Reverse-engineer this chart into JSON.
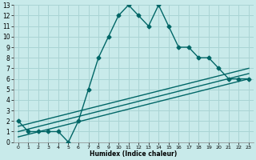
{
  "xlabel": "Humidex (Indice chaleur)",
  "ylabel": "",
  "bg_color": "#c8eaea",
  "grid_color": "#aad4d4",
  "line_color": "#006666",
  "xlim": [
    -0.5,
    23.5
  ],
  "ylim": [
    0,
    13
  ],
  "xticks": [
    0,
    1,
    2,
    3,
    4,
    5,
    6,
    7,
    8,
    9,
    10,
    11,
    12,
    13,
    14,
    15,
    16,
    17,
    18,
    19,
    20,
    21,
    22,
    23
  ],
  "yticks": [
    0,
    1,
    2,
    3,
    4,
    5,
    6,
    7,
    8,
    9,
    10,
    11,
    12,
    13
  ],
  "curve1_x": [
    0,
    1,
    2,
    3,
    4,
    5,
    6,
    7,
    8,
    9,
    10,
    11,
    12,
    13,
    14,
    15,
    16,
    17,
    18,
    19,
    20,
    21,
    22,
    23
  ],
  "curve1_y": [
    2,
    1,
    1,
    1,
    1,
    0,
    2,
    5,
    8,
    10,
    12,
    13,
    12,
    11,
    13,
    11,
    9,
    9,
    8,
    8,
    7,
    6,
    6,
    6
  ],
  "line2_x": [
    0,
    23
  ],
  "line2_y": [
    1.5,
    7.0
  ],
  "line3_x": [
    0,
    23
  ],
  "line3_y": [
    1.0,
    6.5
  ],
  "line4_x": [
    0,
    23
  ],
  "line4_y": [
    0.5,
    6.0
  ],
  "marker": "D",
  "markersize": 2.5,
  "linewidth": 1.0
}
